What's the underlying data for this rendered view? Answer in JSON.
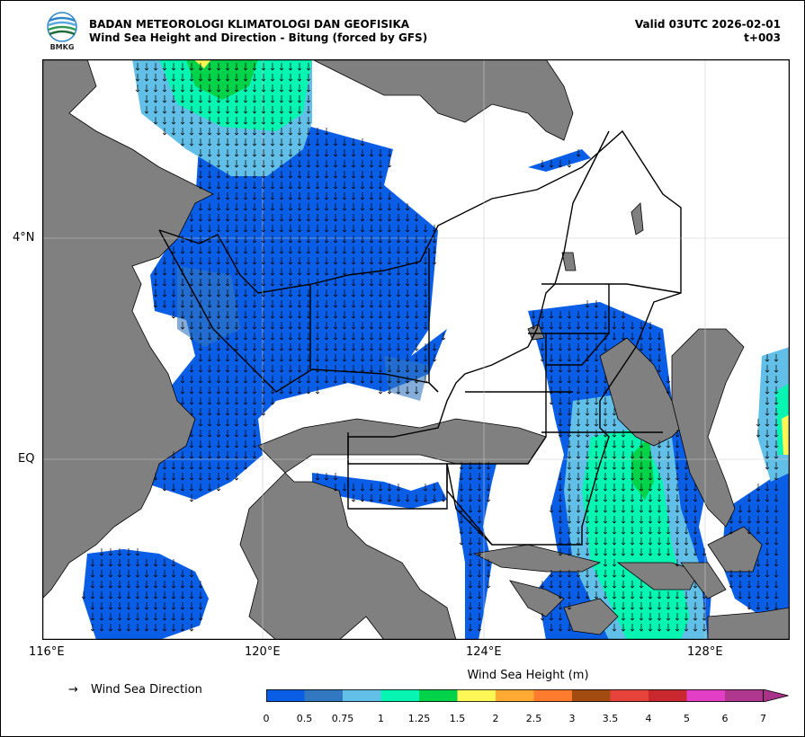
{
  "header": {
    "org": "BADAN METEOROLOGI KLIMATOLOGI DAN GEOFISIKA",
    "subtitle": "Wind Sea Height and Direction - Bitung (forced by GFS)",
    "valid": "Valid 03UTC 2026-02-01",
    "step": "t+003",
    "logo_text": "BMKG"
  },
  "map": {
    "lon_ticks": [
      "116°E",
      "120°E",
      "124°E",
      "128°E"
    ],
    "lat_ticks": [
      "4°N",
      "EQ"
    ],
    "arrow_direction": "south"
  },
  "legend": {
    "arrow_glyph": "→",
    "direction_label": "Wind Sea Direction"
  },
  "colorbar": {
    "title": "Wind Sea Height (m)",
    "ticks": [
      "0",
      "0.5",
      "0.75",
      "1",
      "1.25",
      "1.5",
      "2",
      "2.5",
      "3",
      "3.5",
      "4",
      "5",
      "6",
      "7"
    ],
    "colors": [
      "#0a5ee6",
      "#3278c0",
      "#62bfe8",
      "#06f5b2",
      "#00d24a",
      "#fff755",
      "#ffaa33",
      "#ff7b2d",
      "#a24c12",
      "#e8433a",
      "#c8282e",
      "#e33ec6",
      "#b0378e"
    ],
    "extend_color": "#a8328a"
  },
  "colors": {
    "land": "#808080",
    "sea": "#ffffff"
  }
}
